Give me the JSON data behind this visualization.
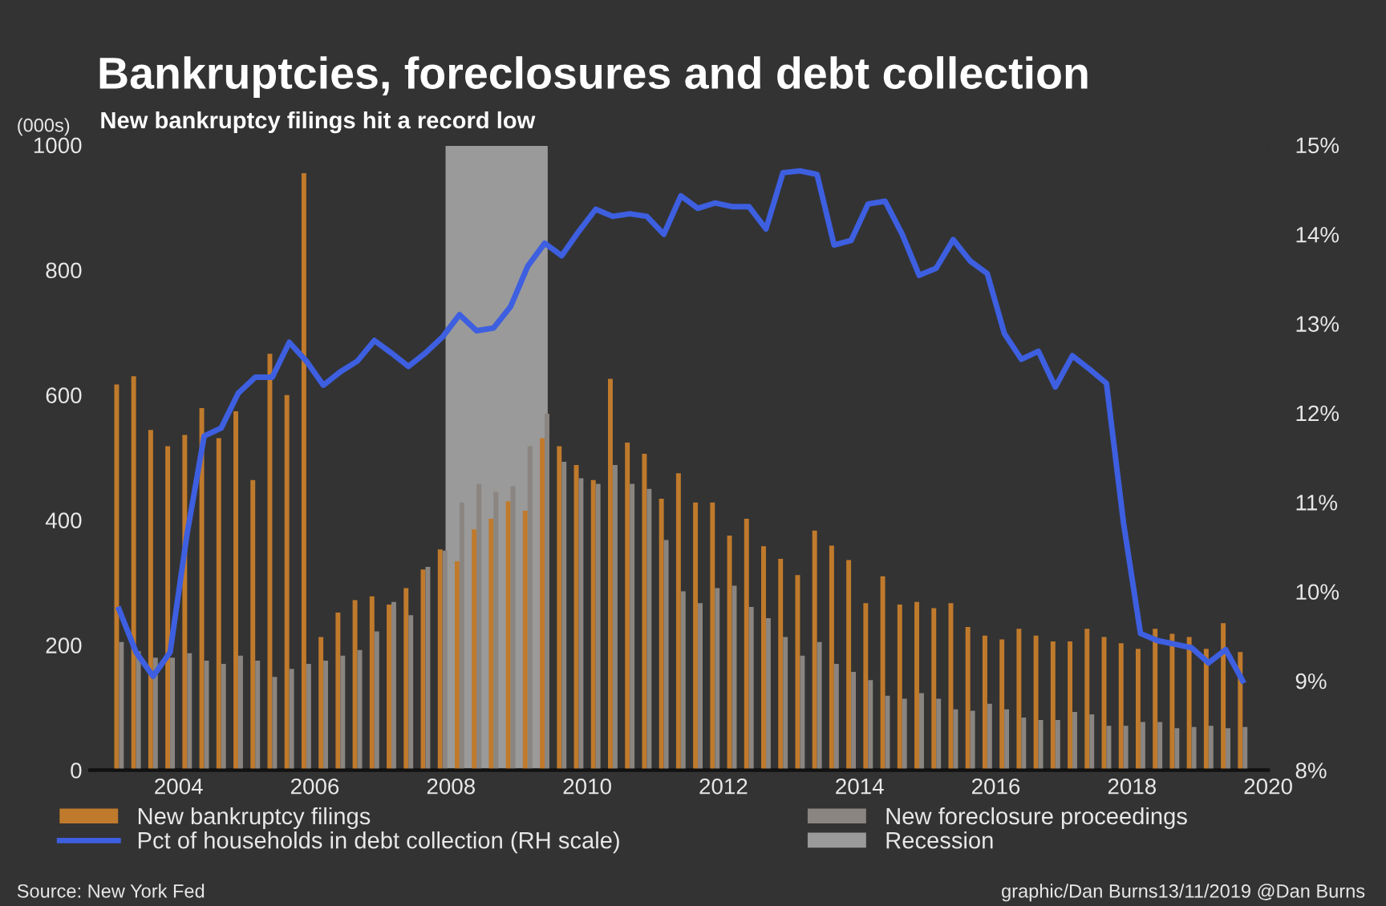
{
  "chart_data": {
    "type": "bar",
    "title": "Bankruptcies, foreclosures and debt collection",
    "subtitle": "New bankruptcy filings hit a record low",
    "ylabel": "(000s)",
    "x": [
      2003.125,
      2003.375,
      2003.625,
      2003.875,
      2004.125,
      2004.375,
      2004.625,
      2004.875,
      2005.125,
      2005.375,
      2005.625,
      2005.875,
      2006.125,
      2006.375,
      2006.625,
      2006.875,
      2007.125,
      2007.375,
      2007.625,
      2007.875,
      2008.125,
      2008.375,
      2008.625,
      2008.875,
      2009.125,
      2009.375,
      2009.625,
      2009.875,
      2010.125,
      2010.375,
      2010.625,
      2010.875,
      2011.125,
      2011.375,
      2011.625,
      2011.875,
      2012.125,
      2012.375,
      2012.625,
      2012.875,
      2013.125,
      2013.375,
      2013.625,
      2013.875,
      2014.125,
      2014.375,
      2014.625,
      2014.875,
      2015.125,
      2015.375,
      2015.625,
      2015.875,
      2016.125,
      2016.375,
      2016.625,
      2016.875,
      2017.125,
      2017.375,
      2017.625,
      2017.875,
      2018.125,
      2018.375,
      2018.625,
      2018.875,
      2019.125,
      2019.375,
      2019.625
    ],
    "series": [
      {
        "name": "New bankruptcy filings",
        "color": "#c07a2c",
        "values": [
          617,
          630,
          544,
          518,
          536,
          579,
          531,
          574,
          464,
          666,
          600,
          955,
          213,
          252,
          272,
          278,
          265,
          291,
          321,
          353,
          334,
          385,
          402,
          430,
          415,
          531,
          518,
          488,
          464,
          626,
          524,
          506,
          434,
          475,
          428,
          428,
          375,
          402,
          358,
          338,
          312,
          383,
          359,
          336,
          267,
          310,
          265,
          269,
          259,
          267,
          229,
          215,
          209,
          226,
          215,
          206,
          206,
          226,
          213,
          203,
          194,
          226,
          218,
          213,
          194,
          235,
          189
        ]
      },
      {
        "name": "New foreclosure proceedings",
        "color": "#8a8580",
        "values": [
          205,
          190,
          180,
          180,
          187,
          175,
          170,
          183,
          175,
          149,
          162,
          170,
          175,
          183,
          192,
          222,
          269,
          248,
          325,
          351,
          428,
          458,
          445,
          454,
          518,
          570,
          493,
          467,
          458,
          488,
          458,
          450,
          368,
          286,
          267,
          291,
          295,
          261,
          243,
          213,
          183,
          205,
          170,
          157,
          144,
          119,
          114,
          123,
          114,
          97,
          95,
          106,
          97,
          84,
          80,
          80,
          93,
          89,
          71,
          71,
          77,
          77,
          67,
          69,
          71,
          67,
          69
        ]
      },
      {
        "name": "Pct of households in debt collection (RH scale)",
        "type": "line",
        "axis": "y2",
        "color": "#3d5fe0",
        "values": [
          9.8,
          9.32,
          9.05,
          9.32,
          10.65,
          11.74,
          11.83,
          12.22,
          12.4,
          12.4,
          12.79,
          12.58,
          12.31,
          12.46,
          12.58,
          12.81,
          12.67,
          12.52,
          12.67,
          12.85,
          13.1,
          12.92,
          12.95,
          13.19,
          13.64,
          13.9,
          13.76,
          14.03,
          14.28,
          14.2,
          14.23,
          14.2,
          14.0,
          14.43,
          14.29,
          14.35,
          14.31,
          14.31,
          14.06,
          14.69,
          14.71,
          14.67,
          13.88,
          13.93,
          14.34,
          14.37,
          14.0,
          13.54,
          13.62,
          13.94,
          13.7,
          13.56,
          12.89,
          12.6,
          12.69,
          12.29,
          12.64,
          12.49,
          12.33,
          10.77,
          9.53,
          9.45,
          9.41,
          9.37,
          9.2,
          9.35,
          9.0
        ]
      }
    ],
    "xlim": [
      2002.7,
      2020
    ],
    "xticks": [
      2004,
      2006,
      2008,
      2010,
      2012,
      2014,
      2016,
      2018,
      2020
    ],
    "ylim": [
      0,
      1000
    ],
    "yticks": [
      0,
      200,
      400,
      600,
      800,
      1000
    ],
    "y2lim": [
      8,
      15
    ],
    "y2ticks": [
      {
        "value": 8,
        "label": "8%"
      },
      {
        "value": 9,
        "label": "9%"
      },
      {
        "value": 10,
        "label": "10%"
      },
      {
        "value": 11,
        "label": "11%"
      },
      {
        "value": 12,
        "label": "12%"
      },
      {
        "value": 13,
        "label": "13%"
      },
      {
        "value": 14,
        "label": "14%"
      },
      {
        "value": 15,
        "label": "15%"
      }
    ],
    "bands": [
      {
        "axis": "x",
        "from": 2007.92,
        "to": 2009.42,
        "label": "Recession",
        "color": "#9a9a9a"
      }
    ],
    "legend": "bottom",
    "grid": false,
    "marker": "none",
    "line_style": "solid",
    "annotations": [
      "Source: New York Fed",
      "graphic/Dan Burns13/11/2019 @Dan Burns"
    ]
  }
}
